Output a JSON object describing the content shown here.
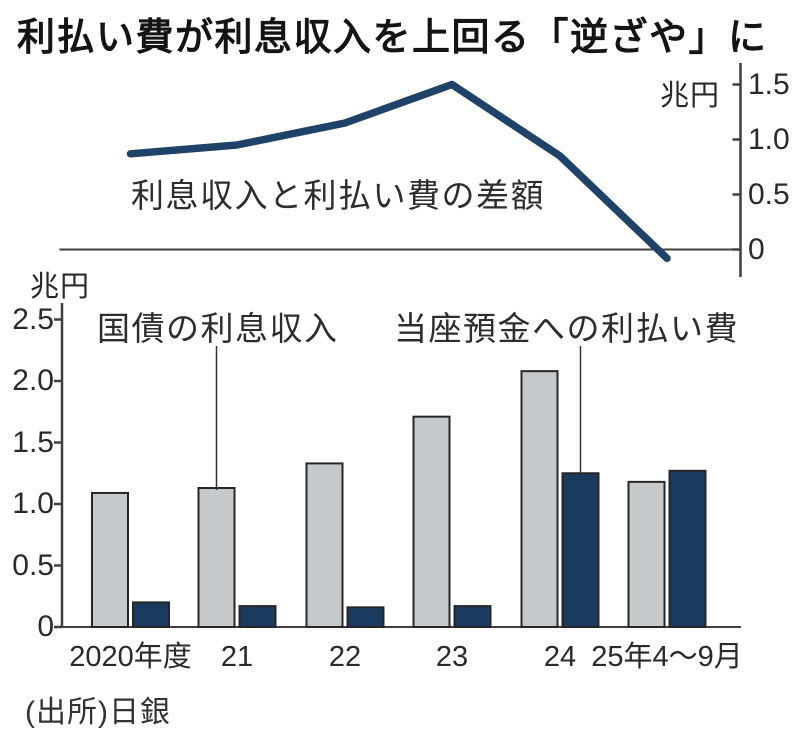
{
  "title": "利払い費が利息収入を上回る「逆ざや」に",
  "source": "(出所)日銀",
  "chart_data": [
    {
      "type": "line",
      "title": "利息収入と利払い費の差額",
      "unit": "兆円",
      "categories": [
        "2020年度",
        "21",
        "22",
        "23",
        "24",
        "25年4～9月"
      ],
      "values": [
        0.87,
        0.95,
        1.15,
        1.5,
        0.85,
        -0.08
      ],
      "ytick_labels": [
        "1.5",
        "1.0",
        "0.5",
        "0"
      ],
      "ylim": [
        -0.15,
        1.65
      ],
      "axis_side": "right",
      "line_color": "#1f4269"
    },
    {
      "type": "bar",
      "unit": "兆円",
      "categories": [
        "2020年度",
        "21",
        "22",
        "23",
        "24",
        "25年4～9月"
      ],
      "series": [
        {
          "name": "国債の利息収入",
          "color": "#c5c9cc",
          "values": [
            1.09,
            1.13,
            1.33,
            1.71,
            2.08,
            1.18
          ]
        },
        {
          "name": "当座預金への利払い費",
          "color": "#1a3a5f",
          "values": [
            0.2,
            0.17,
            0.16,
            0.17,
            1.25,
            1.27
          ]
        }
      ],
      "ytick_labels": [
        "2.5",
        "2.0",
        "1.5",
        "1.0",
        "0.5",
        "0"
      ],
      "ylim": [
        0,
        2.6
      ],
      "annotations": [
        {
          "text": "国債の利息収入",
          "category": 1,
          "series": 0
        },
        {
          "text": "当座預金への利払い費",
          "category": 4,
          "series": 1
        }
      ]
    }
  ]
}
